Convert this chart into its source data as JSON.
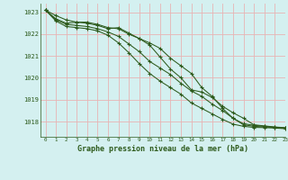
{
  "title": "Graphe pression niveau de la mer (hPa)",
  "background_color": "#d4f0f0",
  "grid_color": "#e8b4b4",
  "line_color": "#2d5a1b",
  "xlim": [
    -0.5,
    23
  ],
  "ylim": [
    1017.3,
    1023.4
  ],
  "yticks": [
    1018,
    1019,
    1020,
    1021,
    1022,
    1023
  ],
  "xticks": [
    0,
    1,
    2,
    3,
    4,
    5,
    6,
    7,
    8,
    9,
    10,
    11,
    12,
    13,
    14,
    15,
    16,
    17,
    18,
    19,
    20,
    21,
    22,
    23
  ],
  "series": [
    [
      1023.1,
      1022.85,
      1022.65,
      1022.55,
      1022.55,
      1022.45,
      1022.3,
      1022.25,
      1022.0,
      1021.8,
      1021.6,
      1021.35,
      1020.9,
      1020.55,
      1020.2,
      1019.55,
      1019.15,
      1018.6,
      1018.15,
      1017.85,
      1017.78,
      1017.75,
      1017.73,
      1017.7
    ],
    [
      1023.1,
      1022.7,
      1022.5,
      1022.55,
      1022.5,
      1022.4,
      1022.25,
      1022.3,
      1022.05,
      1021.8,
      1021.5,
      1020.95,
      1020.4,
      1020.0,
      1019.45,
      1019.35,
      1019.1,
      1018.7,
      1018.4,
      1018.15,
      1017.85,
      1017.8,
      1017.75,
      1017.72
    ],
    [
      1023.1,
      1022.65,
      1022.45,
      1022.4,
      1022.35,
      1022.25,
      1022.1,
      1021.9,
      1021.55,
      1021.2,
      1020.75,
      1020.45,
      1020.15,
      1019.75,
      1019.4,
      1019.15,
      1018.8,
      1018.5,
      1018.15,
      1017.9,
      1017.83,
      1017.78,
      1017.74,
      1017.7
    ],
    [
      1023.1,
      1022.6,
      1022.35,
      1022.3,
      1022.25,
      1022.15,
      1021.95,
      1021.6,
      1021.15,
      1020.65,
      1020.2,
      1019.85,
      1019.55,
      1019.25,
      1018.85,
      1018.6,
      1018.35,
      1018.1,
      1017.88,
      1017.78,
      1017.73,
      1017.72,
      1017.7,
      1017.67
    ]
  ]
}
